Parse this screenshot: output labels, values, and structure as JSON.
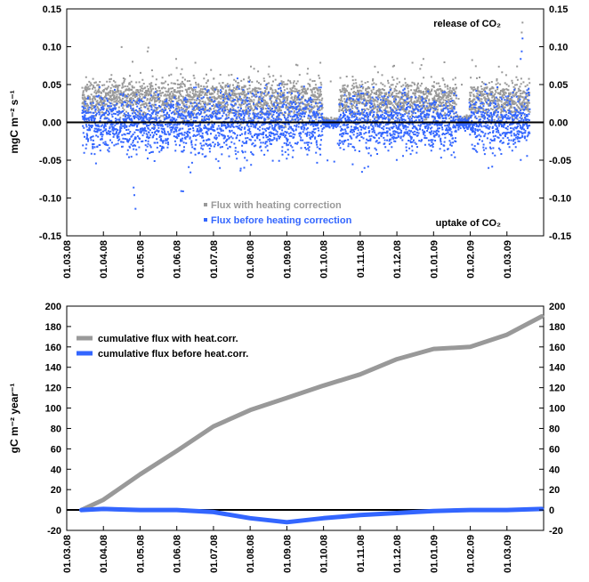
{
  "chart_data": [
    {
      "type": "scatter",
      "ylabel": "mgC m⁻² s⁻¹",
      "x_ticks": [
        "01.03.08",
        "01.04.08",
        "01.05.08",
        "01.06.08",
        "01.07.08",
        "01.08.08",
        "01.09.08",
        "01.10.08",
        "01.11.08",
        "01.12.08",
        "01.01.09",
        "01.02.09",
        "01.03.09"
      ],
      "ylim": [
        -0.15,
        0.15
      ],
      "y_ticks": [
        "0.15",
        "0.10",
        "0.05",
        "0.00",
        "-0.05",
        "-0.10",
        "-0.15"
      ],
      "annotations": {
        "release": "release of CO₂",
        "uptake": "uptake of CO₂"
      },
      "series": [
        {
          "name": "Flux with heating correction",
          "color": "#999999",
          "typical_mean": 0.035,
          "typical_spread": 0.012,
          "max": 0.133
        },
        {
          "name": "Flux before heating correction",
          "color": "#3366ff",
          "typical_mean": 0.0,
          "typical_spread": 0.018,
          "min": -0.113,
          "max": 0.112
        }
      ],
      "legend_position": "bottom-left",
      "grid": false
    },
    {
      "type": "line",
      "ylabel": "gC m⁻² year⁻¹",
      "x_ticks": [
        "01.03.08",
        "01.04.08",
        "01.05.08",
        "01.06.08",
        "01.07.08",
        "01.08.08",
        "01.09.08",
        "01.10.08",
        "01.11.08",
        "01.12.08",
        "01.01.09",
        "01.02.09",
        "01.03.09"
      ],
      "ylim": [
        -20,
        200
      ],
      "y_ticks": [
        "200",
        "180",
        "160",
        "140",
        "120",
        "100",
        "80",
        "60",
        "40",
        "20",
        "0",
        "-20"
      ],
      "x_months": [
        0.4,
        1,
        2,
        3,
        4,
        5,
        6,
        7,
        8,
        9,
        10,
        11,
        12,
        12.95
      ],
      "series": [
        {
          "name": "cumulative flux with heat.corr.",
          "color": "#999999",
          "values": [
            0,
            10,
            35,
            58,
            82,
            98,
            110,
            122,
            133,
            148,
            158,
            160,
            172,
            190
          ]
        },
        {
          "name": "cumulative flux before heat.corr.",
          "color": "#3366ff",
          "values": [
            0,
            1,
            0,
            0,
            -2,
            -8,
            -12,
            -8,
            -5,
            -3,
            -1,
            0,
            0,
            1
          ]
        }
      ],
      "legend_position": "top-left",
      "grid": false
    }
  ]
}
